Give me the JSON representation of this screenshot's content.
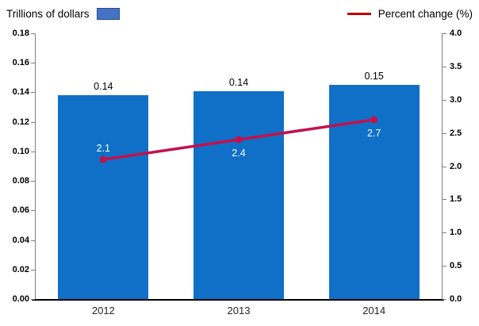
{
  "legend_left": {
    "label": "Trillions of dollars",
    "swatch_color": "#4472C4",
    "swatch_border_color": "#1F4E8C"
  },
  "legend_right": {
    "label": "Percent change (%)",
    "dash_color": "#C00000"
  },
  "chart_data": {
    "type": "bar",
    "subtype": "combo-bar-line",
    "categories": [
      "2012",
      "2013",
      "2014"
    ],
    "series": [
      {
        "name": "Trillions of dollars",
        "type": "bar",
        "axis": "left",
        "color": "#1070C7",
        "values": [
          0.138,
          0.141,
          0.145
        ],
        "data_labels": [
          "0.14",
          "0.14",
          "0.15"
        ],
        "data_label_color": "#000000"
      },
      {
        "name": "Percent change (%)",
        "type": "line",
        "axis": "right",
        "color": "#C4114B",
        "values": [
          2.1,
          2.4,
          2.7
        ],
        "data_labels": [
          "2.1",
          "2.4",
          "2.7"
        ],
        "data_label_positions": [
          "above",
          "below",
          "below"
        ],
        "data_label_color": "#FFFFFF"
      }
    ],
    "left_axis": {
      "min": 0.0,
      "max": 0.18,
      "step": 0.02,
      "tick_labels": [
        "0.00",
        "0.02",
        "0.04",
        "0.06",
        "0.08",
        "0.10",
        "0.12",
        "0.14",
        "0.16",
        "0.18"
      ]
    },
    "right_axis": {
      "min": 0.0,
      "max": 4.0,
      "step": 0.5,
      "tick_labels": [
        "0.0",
        "0.5",
        "1.0",
        "1.5",
        "2.0",
        "2.5",
        "3.0",
        "3.5",
        "4.0"
      ]
    },
    "grid": false,
    "legend_position": "top",
    "axis_line_color": "#7F7F7F",
    "baseline_color": "#000000"
  }
}
